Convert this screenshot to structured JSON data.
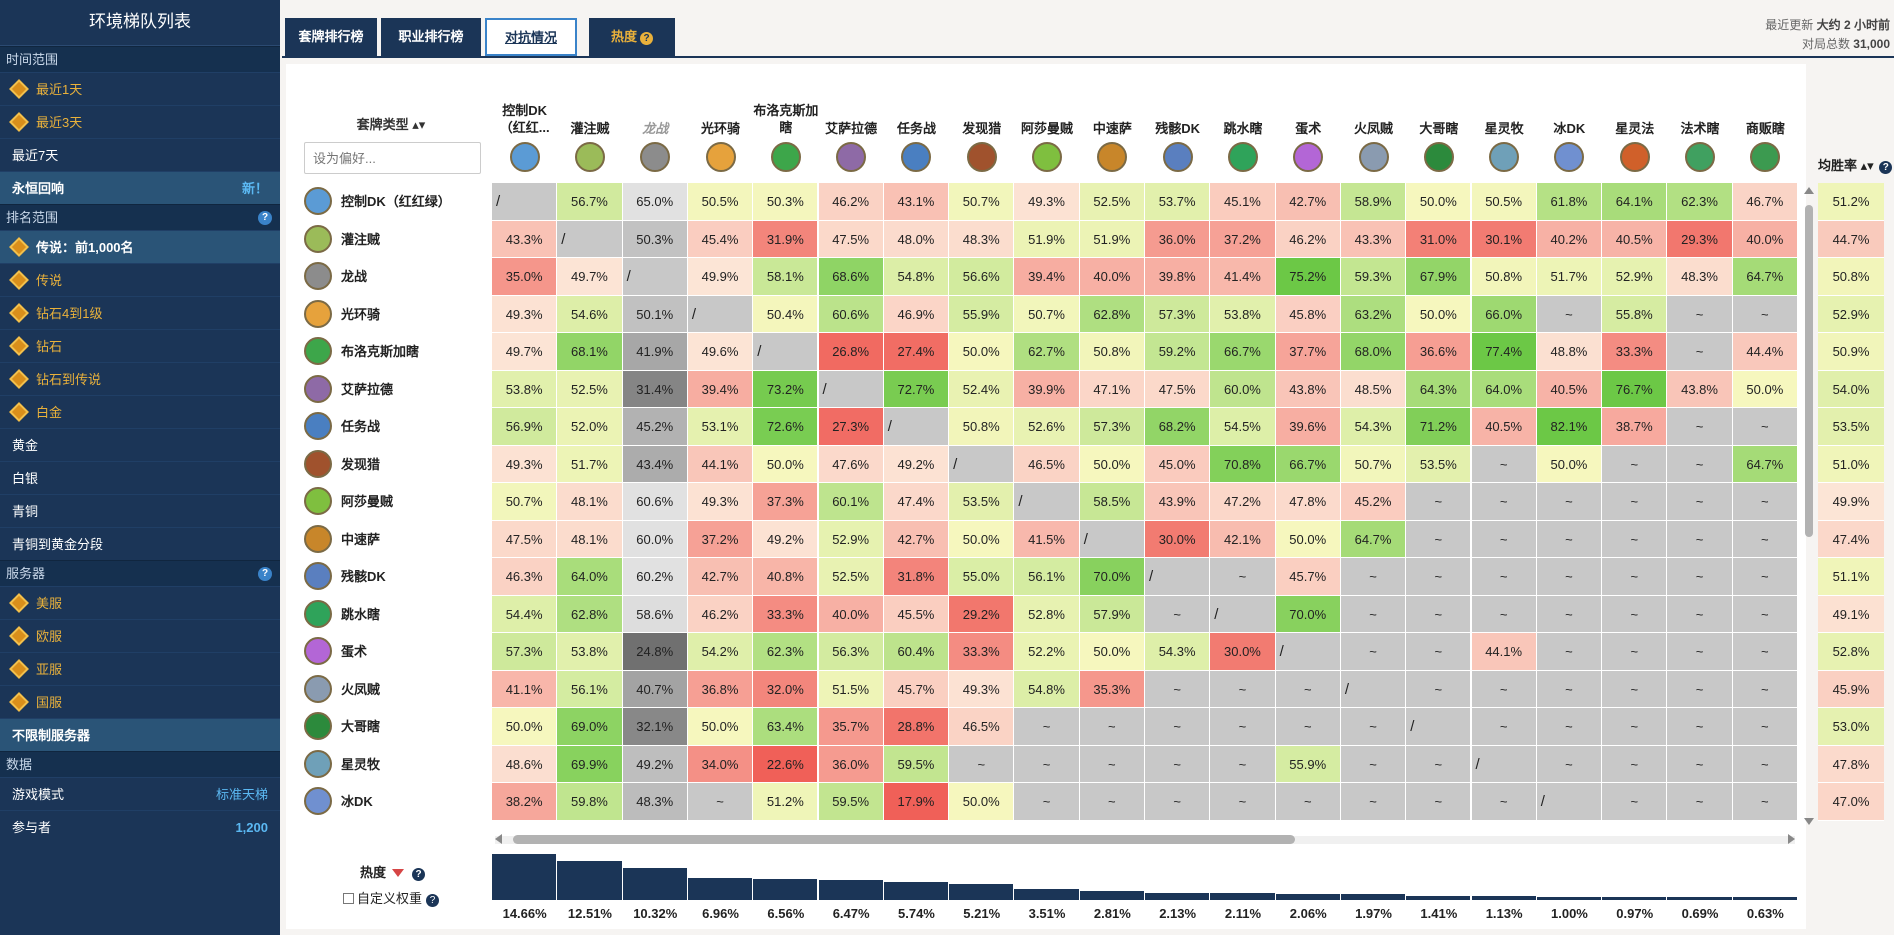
{
  "sidebar": {
    "title": "环境梯队列表",
    "sections": [
      {
        "label": "时间范围",
        "help": false,
        "items": [
          {
            "label": "最近1天",
            "gold": true,
            "gem": true
          },
          {
            "label": "最近3天",
            "gold": true,
            "gem": true
          },
          {
            "label": "最近7天"
          },
          {
            "label": "永恒回响",
            "active": true,
            "right": "新！"
          }
        ]
      },
      {
        "label": "排名范围",
        "help": true,
        "items": [
          {
            "label": "传说：前1,000名",
            "gem": true,
            "active": true
          },
          {
            "label": "传说",
            "gold": true,
            "gem": true
          },
          {
            "label": "钻石4到1级",
            "gold": true,
            "gem": true
          },
          {
            "label": "钻石",
            "gold": true,
            "gem": true
          },
          {
            "label": "钻石到传说",
            "gold": true,
            "gem": true
          },
          {
            "label": "白金",
            "gold": true,
            "gem": true
          },
          {
            "label": "黄金"
          },
          {
            "label": "白银"
          },
          {
            "label": "青铜"
          },
          {
            "label": "青铜到黄金分段"
          }
        ]
      },
      {
        "label": "服务器",
        "help": true,
        "items": [
          {
            "label": "美服",
            "gold": true,
            "gem": true
          },
          {
            "label": "欧服",
            "gold": true,
            "gem": true
          },
          {
            "label": "亚服",
            "gold": true,
            "gem": true
          },
          {
            "label": "国服",
            "gold": true,
            "gem": true
          },
          {
            "label": "不限制服务器",
            "active": true
          }
        ]
      },
      {
        "label": "数据",
        "help": false,
        "items": [
          {
            "label": "游戏模式",
            "right": "标准天梯"
          },
          {
            "label": "参与者",
            "right": "1,200",
            "rightBold": true
          }
        ]
      }
    ]
  },
  "tabs": [
    {
      "label": "套牌排行榜"
    },
    {
      "label": "职业排行榜"
    },
    {
      "label": "对抗情况",
      "active": true
    },
    {
      "label": "热度",
      "heat": true
    }
  ],
  "meta": {
    "updated_label": "最近更新",
    "updated_value": "大约 2 小时前",
    "games_label": "对局总数",
    "games_value": "31,000"
  },
  "table": {
    "deck_type_header": "套牌类型",
    "pref_placeholder": "设为偏好...",
    "columns": [
      "控制DK（红红...",
      "灌注贼",
      "龙战",
      "光环骑",
      "布洛克斯加瞎",
      "艾萨拉德",
      "任务战",
      "发现猎",
      "阿莎曼贼",
      "中速萨",
      "残骸DK",
      "跳水瞎",
      "蛋术",
      "火凤贼",
      "大哥瞎",
      "星灵牧",
      "冰DK",
      "星灵法",
      "法术瞎",
      "商贩瞎"
    ],
    "dim_col": 2,
    "winrate_header": "均胜率",
    "rows": [
      {
        "name": "控制DK（红红绿）",
        "wr": "51.2%",
        "cells": [
          "/",
          "56.7%",
          "65.0%",
          "50.5%",
          "50.3%",
          "46.2%",
          "43.1%",
          "50.7%",
          "49.3%",
          "52.5%",
          "53.7%",
          "45.1%",
          "42.7%",
          "58.9%",
          "50.0%",
          "50.5%",
          "61.8%",
          "64.1%",
          "62.3%",
          "46.7%"
        ]
      },
      {
        "name": "灌注贼",
        "wr": "44.7%",
        "cells": [
          "43.3%",
          "/",
          "50.3%",
          "45.4%",
          "31.9%",
          "47.5%",
          "48.0%",
          "48.3%",
          "51.9%",
          "51.9%",
          "36.0%",
          "37.2%",
          "46.2%",
          "43.3%",
          "31.0%",
          "30.1%",
          "40.2%",
          "40.5%",
          "29.3%",
          "40.0%"
        ]
      },
      {
        "name": "龙战",
        "wr": "50.8%",
        "cells": [
          "35.0%",
          "49.7%",
          "/",
          "49.9%",
          "58.1%",
          "68.6%",
          "54.8%",
          "56.6%",
          "39.4%",
          "40.0%",
          "39.8%",
          "41.4%",
          "75.2%",
          "59.3%",
          "67.9%",
          "50.8%",
          "51.7%",
          "52.9%",
          "48.3%",
          "64.7%"
        ]
      },
      {
        "name": "光环骑",
        "wr": "52.9%",
        "cells": [
          "49.3%",
          "54.6%",
          "50.1%",
          "/",
          "50.4%",
          "60.6%",
          "46.9%",
          "55.9%",
          "50.7%",
          "62.8%",
          "57.3%",
          "53.8%",
          "45.8%",
          "63.2%",
          "50.0%",
          "66.0%",
          "~",
          "55.8%",
          "~",
          "~"
        ]
      },
      {
        "name": "布洛克斯加瞎",
        "wr": "50.9%",
        "cells": [
          "49.7%",
          "68.1%",
          "41.9%",
          "49.6%",
          "/",
          "26.8%",
          "27.4%",
          "50.0%",
          "62.7%",
          "50.8%",
          "59.2%",
          "66.7%",
          "37.7%",
          "68.0%",
          "36.6%",
          "77.4%",
          "48.8%",
          "33.3%",
          "~",
          "44.4%"
        ]
      },
      {
        "name": "艾萨拉德",
        "wr": "54.0%",
        "cells": [
          "53.8%",
          "52.5%",
          "31.4%",
          "39.4%",
          "73.2%",
          "/",
          "72.7%",
          "52.4%",
          "39.9%",
          "47.1%",
          "47.5%",
          "60.0%",
          "43.8%",
          "48.5%",
          "64.3%",
          "64.0%",
          "40.5%",
          "76.7%",
          "43.8%",
          "50.0%"
        ]
      },
      {
        "name": "任务战",
        "wr": "53.5%",
        "cells": [
          "56.9%",
          "52.0%",
          "45.2%",
          "53.1%",
          "72.6%",
          "27.3%",
          "/",
          "50.8%",
          "52.6%",
          "57.3%",
          "68.2%",
          "54.5%",
          "39.6%",
          "54.3%",
          "71.2%",
          "40.5%",
          "82.1%",
          "38.7%",
          "~",
          "~"
        ]
      },
      {
        "name": "发现猎",
        "wr": "51.0%",
        "cells": [
          "49.3%",
          "51.7%",
          "43.4%",
          "44.1%",
          "50.0%",
          "47.6%",
          "49.2%",
          "/",
          "46.5%",
          "50.0%",
          "45.0%",
          "70.8%",
          "66.7%",
          "50.7%",
          "53.5%",
          "~",
          "50.0%",
          "~",
          "~",
          "64.7%"
        ]
      },
      {
        "name": "阿莎曼贼",
        "wr": "49.9%",
        "cells": [
          "50.7%",
          "48.1%",
          "60.6%",
          "49.3%",
          "37.3%",
          "60.1%",
          "47.4%",
          "53.5%",
          "/",
          "58.5%",
          "43.9%",
          "47.2%",
          "47.8%",
          "45.2%",
          "~",
          "~",
          "~",
          "~",
          "~",
          "~"
        ]
      },
      {
        "name": "中速萨",
        "wr": "47.4%",
        "cells": [
          "47.5%",
          "48.1%",
          "60.0%",
          "37.2%",
          "49.2%",
          "52.9%",
          "42.7%",
          "50.0%",
          "41.5%",
          "/",
          "30.0%",
          "42.1%",
          "50.0%",
          "64.7%",
          "~",
          "~",
          "~",
          "~",
          "~",
          "~"
        ]
      },
      {
        "name": "残骸DK",
        "wr": "51.1%",
        "cells": [
          "46.3%",
          "64.0%",
          "60.2%",
          "42.7%",
          "40.8%",
          "52.5%",
          "31.8%",
          "55.0%",
          "56.1%",
          "70.0%",
          "/",
          "~",
          "45.7%",
          "~",
          "~",
          "~",
          "~",
          "~",
          "~",
          "~"
        ]
      },
      {
        "name": "跳水瞎",
        "wr": "49.1%",
        "cells": [
          "54.4%",
          "62.8%",
          "58.6%",
          "46.2%",
          "33.3%",
          "40.0%",
          "45.5%",
          "29.2%",
          "52.8%",
          "57.9%",
          "~",
          "/",
          "70.0%",
          "~",
          "~",
          "~",
          "~",
          "~",
          "~",
          "~"
        ]
      },
      {
        "name": "蛋术",
        "wr": "52.8%",
        "cells": [
          "57.3%",
          "53.8%",
          "24.8%",
          "54.2%",
          "62.3%",
          "56.3%",
          "60.4%",
          "33.3%",
          "52.2%",
          "50.0%",
          "54.3%",
          "30.0%",
          "/",
          "~",
          "~",
          "44.1%",
          "~",
          "~",
          "~",
          "~"
        ]
      },
      {
        "name": "火凤贼",
        "wr": "45.9%",
        "cells": [
          "41.1%",
          "56.1%",
          "40.7%",
          "36.8%",
          "32.0%",
          "51.5%",
          "45.7%",
          "49.3%",
          "54.8%",
          "35.3%",
          "~",
          "~",
          "~",
          "/",
          "~",
          "~",
          "~",
          "~",
          "~",
          "~"
        ]
      },
      {
        "name": "大哥瞎",
        "wr": "53.0%",
        "cells": [
          "50.0%",
          "69.0%",
          "32.1%",
          "50.0%",
          "63.4%",
          "35.7%",
          "28.8%",
          "46.5%",
          "~",
          "~",
          "~",
          "~",
          "~",
          "~",
          "/",
          "~",
          "~",
          "~",
          "~",
          "~"
        ]
      },
      {
        "name": "星灵牧",
        "wr": "47.8%",
        "cells": [
          "48.6%",
          "69.9%",
          "49.2%",
          "34.0%",
          "22.6%",
          "36.0%",
          "59.5%",
          "~",
          "~",
          "~",
          "~",
          "~",
          "55.9%",
          "~",
          "~",
          "/",
          "~",
          "~",
          "~",
          "~"
        ]
      },
      {
        "name": "冰DK",
        "wr": "47.0%",
        "cells": [
          "38.2%",
          "59.8%",
          "48.3%",
          "~",
          "51.2%",
          "59.5%",
          "17.9%",
          "50.0%",
          "~",
          "~",
          "~",
          "~",
          "~",
          "~",
          "~",
          "~",
          "/",
          "~",
          "~",
          "~"
        ]
      }
    ]
  },
  "popularity": {
    "label": "热度",
    "custom_label": "自定义权重",
    "values": [
      14.66,
      12.51,
      10.32,
      6.96,
      6.56,
      6.47,
      5.74,
      5.21,
      3.51,
      2.81,
      2.13,
      2.11,
      2.06,
      1.97,
      1.41,
      1.13,
      1.0,
      0.97,
      0.69,
      0.63
    ],
    "labels": [
      "14.66%",
      "12.51%",
      "10.32%",
      "6.96%",
      "6.56%",
      "6.47%",
      "5.74%",
      "5.21%",
      "3.51%",
      "2.81%",
      "2.13%",
      "2.11%",
      "2.06%",
      "1.97%",
      "1.41%",
      "1.13%",
      "1.00%",
      "0.97%",
      "0.69%",
      "0.63%"
    ]
  },
  "colors": {
    "brand": "#1b3557",
    "accent": "#3a83c9",
    "gold": "#e9b13b"
  }
}
